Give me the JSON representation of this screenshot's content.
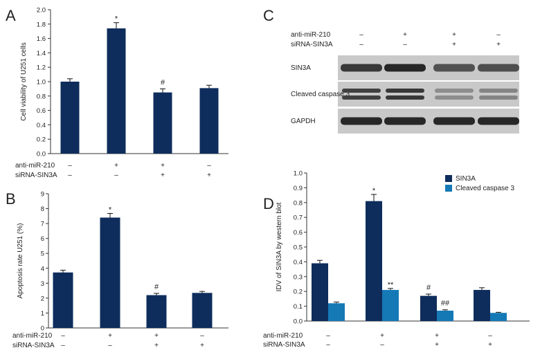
{
  "chart_data": [
    {
      "panel": "A",
      "type": "bar",
      "categories": [
        "1",
        "2",
        "3",
        "4"
      ],
      "series": [
        {
          "values": [
            1.0,
            1.74,
            0.85,
            0.91
          ],
          "errors": [
            0.04,
            0.08,
            0.05,
            0.04
          ],
          "color": "#0e2d5c"
        }
      ],
      "significance": [
        "",
        "*",
        "#",
        ""
      ],
      "xlabel": "",
      "ylabel": "Cell viability of U251 cells",
      "ylim": [
        0,
        2.0
      ],
      "yticks": [
        0.0,
        0.2,
        0.4,
        0.6,
        0.8,
        1.0,
        1.2,
        1.4,
        1.6,
        1.8,
        2.0
      ],
      "ytick_labels": [
        "0.0",
        "0.2",
        "0.4",
        "0.6",
        "0.8",
        "1.0",
        "1.2",
        "1.4",
        "1.6",
        "1.8",
        "2.0"
      ],
      "conditions": [
        {
          "name": "anti-miR-210",
          "marks": [
            "–",
            "+",
            "+",
            "–"
          ]
        },
        {
          "name": "siRNA-SIN3A",
          "marks": [
            "–",
            "–",
            "+",
            "+"
          ]
        }
      ],
      "grid": false,
      "legend": "none"
    },
    {
      "panel": "B",
      "type": "bar",
      "categories": [
        "1",
        "2",
        "3",
        "4"
      ],
      "series": [
        {
          "values": [
            3.72,
            7.4,
            2.2,
            2.35
          ],
          "errors": [
            0.15,
            0.28,
            0.12,
            0.1
          ],
          "color": "#0e2d5c"
        }
      ],
      "significance": [
        "",
        "*",
        "#",
        ""
      ],
      "xlabel": "",
      "ylabel": "Apoptosis rate U251 (%)",
      "ylim": [
        0,
        9
      ],
      "yticks": [
        0,
        1,
        2,
        3,
        4,
        5,
        6,
        7,
        8,
        9
      ],
      "ytick_labels": [
        "0",
        "1",
        "2",
        "3",
        "4",
        "5",
        "6",
        "7",
        "8",
        "9"
      ],
      "conditions": [
        {
          "name": "anti-miR-210",
          "marks": [
            "–",
            "+",
            "+",
            "–"
          ]
        },
        {
          "name": "siRNA-SIN3A",
          "marks": [
            "–",
            "–",
            "+",
            "+"
          ]
        }
      ],
      "grid": false,
      "legend": "none"
    },
    {
      "panel": "D",
      "type": "bar",
      "categories": [
        "1",
        "2",
        "3",
        "4"
      ],
      "series": [
        {
          "name": "SIN3A",
          "values": [
            0.39,
            0.81,
            0.17,
            0.21
          ],
          "errors": [
            0.02,
            0.045,
            0.012,
            0.015
          ],
          "color": "#0e2d5c",
          "significance": [
            "",
            "*",
            "#",
            ""
          ]
        },
        {
          "name": "Cleaved caspase 3",
          "values": [
            0.12,
            0.21,
            0.07,
            0.055
          ],
          "errors": [
            0.008,
            0.01,
            0.006,
            0.004
          ],
          "color": "#1579b6",
          "significance": [
            "",
            "**",
            "##",
            ""
          ]
        }
      ],
      "xlabel": "",
      "ylabel": "IDV of SIN3A by western blot",
      "ylim": [
        0,
        1.0
      ],
      "yticks": [
        0.0,
        0.1,
        0.2,
        0.3,
        0.4,
        0.5,
        0.6,
        0.7,
        0.8,
        0.9,
        1.0
      ],
      "ytick_labels": [
        "0.0",
        "0.1",
        "0.2",
        "0.3",
        "0.4",
        "0.5",
        "0.6",
        "0.7",
        "0.8",
        "0.9",
        "1.0"
      ],
      "conditions": [
        {
          "name": "anti-miR-210",
          "marks": [
            "–",
            "+",
            "+",
            "–"
          ]
        },
        {
          "name": "siRNA-SIN3A",
          "marks": [
            "–",
            "–",
            "+",
            "+"
          ]
        }
      ],
      "grid": false,
      "legend": "top-right"
    }
  ],
  "blot": {
    "panel": "C",
    "conditions": [
      {
        "name": "anti-miR-210",
        "marks": [
          "–",
          "+",
          "+",
          "–"
        ]
      },
      {
        "name": "siRNA-SIN3A",
        "marks": [
          "–",
          "–",
          "+",
          "+"
        ]
      }
    ],
    "rows": [
      {
        "label": "SIN3A",
        "intensity": [
          0.85,
          0.95,
          0.7,
          0.72
        ]
      },
      {
        "label": "Cleaved caspase 3",
        "intensity": [
          0.8,
          0.85,
          0.35,
          0.4
        ]
      },
      {
        "label": "GAPDH",
        "intensity": [
          0.95,
          0.95,
          0.95,
          0.95
        ]
      }
    ]
  }
}
